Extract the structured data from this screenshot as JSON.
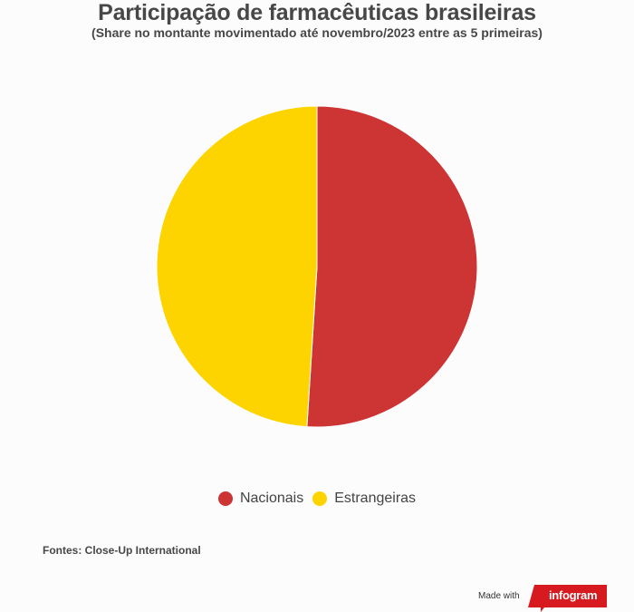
{
  "header": {
    "title": "Participação de farmacêuticas brasileiras",
    "subtitle": "(Share no montante movimentado até novembro/2023 entre as 5 primeiras)"
  },
  "chart_data": {
    "type": "pie",
    "title": "Participação de farmacêuticas brasileiras",
    "subtitle": "(Share no montante movimentado até novembro/2023 entre as 5 primeiras)",
    "categories": [
      "Nacionais",
      "Estrangeiras"
    ],
    "values": [
      51,
      49
    ],
    "colors": [
      "#cd3434",
      "#fdd300"
    ],
    "legend_position": "bottom"
  },
  "footer": {
    "source": "Fontes: Close-Up International",
    "made_with": "Made with",
    "brand": "infogram",
    "brand_color": "#d61a1f"
  }
}
